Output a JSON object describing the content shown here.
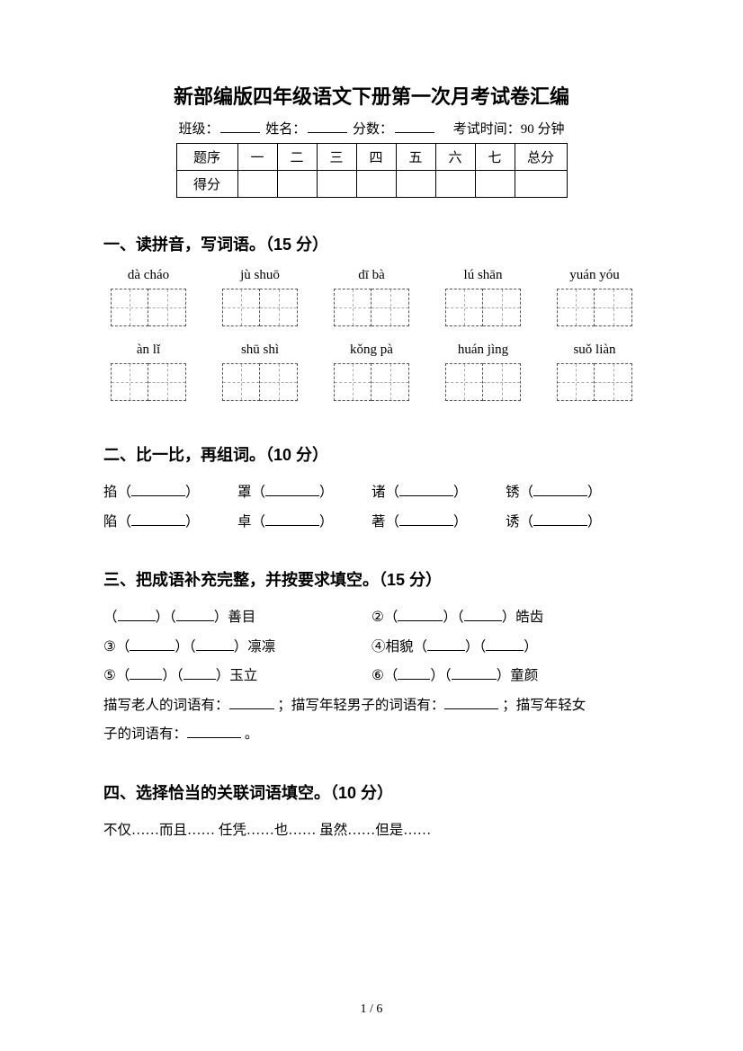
{
  "title": "新部编版四年级语文下册第一次月考试卷汇编",
  "meta": {
    "class_label": "班级：",
    "name_label": "姓名：",
    "score_label": "分数：",
    "exam_time": "考试时间：90 分钟"
  },
  "score_table": {
    "row_header_1": "题序",
    "row_header_2": "得分",
    "cols": [
      "一",
      "二",
      "三",
      "四",
      "五",
      "六",
      "七"
    ],
    "total": "总分"
  },
  "section1": {
    "heading": "一、读拼音，写词语。（15 分）",
    "row1": [
      "dà cháo",
      "jù shuō",
      "dī bà",
      "lú shān",
      "yuán yóu"
    ],
    "row2": [
      "àn lǐ",
      "shū shì",
      "kǒng pà",
      "huán jìng",
      "suǒ liàn"
    ]
  },
  "section2": {
    "heading": "二、比一比，再组词。（10 分）",
    "pairs": [
      [
        "掐",
        "陷"
      ],
      [
        "罩",
        "卓"
      ],
      [
        "诸",
        "著"
      ],
      [
        "锈",
        "诱"
      ]
    ]
  },
  "section3": {
    "heading": "三、把成语补充完整，并按要求填空。（15 分）",
    "items": {
      "i1_suffix": "善目",
      "i2_prefix": "②",
      "i2_suffix": "皓齿",
      "i3_prefix": "③",
      "i3_suffix": "凛凛",
      "i4_prefix": "④相貌",
      "i5_prefix": "⑤",
      "i5_suffix": "玉立",
      "i6_prefix": "⑥",
      "i6_suffix": "童颜"
    },
    "desc1": "描写老人的词语有：",
    "desc2": " ；描写年轻男子的词语有：",
    "desc3": " ；描写年轻女",
    "desc4": "子的词语有：",
    "desc5": " 。"
  },
  "section4": {
    "heading": "四、选择恰当的关联词语填空。（10 分）",
    "options": "不仅……而且……    任凭……也……    虽然……但是……"
  },
  "pagination": "1 / 6"
}
